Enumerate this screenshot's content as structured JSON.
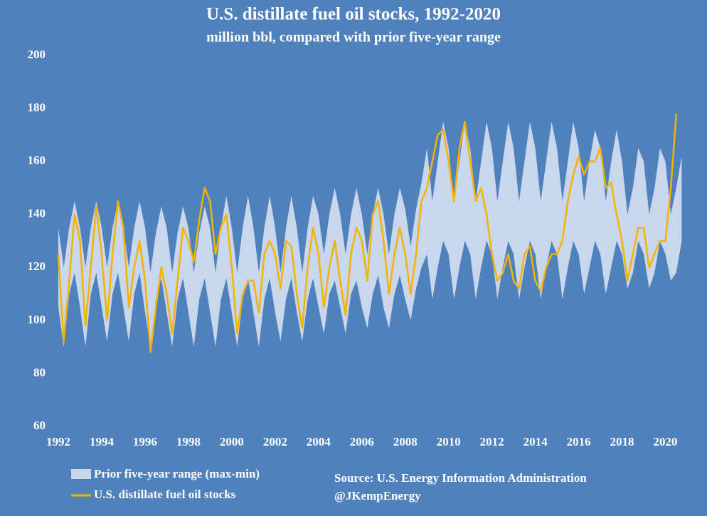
{
  "chart_data": {
    "type": "line",
    "title": "U.S. distillate fuel oil stocks, 1992-2020",
    "subtitle": "million bbl, compared with prior five-year range",
    "annotations": [
      "Source: U.S. Energy Information Administration",
      "@JKempEnergy"
    ],
    "xlim": [
      1992,
      2021
    ],
    "ylim": [
      60,
      200
    ],
    "xticks": [
      1992,
      1994,
      1996,
      1998,
      2000,
      2002,
      2004,
      2006,
      2008,
      2010,
      2012,
      2014,
      2016,
      2018,
      2020
    ],
    "yticks": [
      60,
      80,
      100,
      120,
      140,
      160,
      180,
      200
    ],
    "x": [
      1992,
      1992.25,
      1992.5,
      1992.75,
      1993,
      1993.25,
      1993.5,
      1993.75,
      1994,
      1994.25,
      1994.5,
      1994.75,
      1995,
      1995.25,
      1995.5,
      1995.75,
      1996,
      1996.25,
      1996.5,
      1996.75,
      1997,
      1997.25,
      1997.5,
      1997.75,
      1998,
      1998.25,
      1998.5,
      1998.75,
      1999,
      1999.25,
      1999.5,
      1999.75,
      2000,
      2000.25,
      2000.5,
      2000.75,
      2001,
      2001.25,
      2001.5,
      2001.75,
      2002,
      2002.25,
      2002.5,
      2002.75,
      2003,
      2003.25,
      2003.5,
      2003.75,
      2004,
      2004.25,
      2004.5,
      2004.75,
      2005,
      2005.25,
      2005.5,
      2005.75,
      2006,
      2006.25,
      2006.5,
      2006.75,
      2007,
      2007.25,
      2007.5,
      2007.75,
      2008,
      2008.25,
      2008.5,
      2008.75,
      2009,
      2009.25,
      2009.5,
      2009.75,
      2010,
      2010.25,
      2010.5,
      2010.75,
      2011,
      2011.25,
      2011.5,
      2011.75,
      2012,
      2012.25,
      2012.5,
      2012.75,
      2013,
      2013.25,
      2013.5,
      2013.75,
      2014,
      2014.25,
      2014.5,
      2014.75,
      2015,
      2015.25,
      2015.5,
      2015.75,
      2016,
      2016.25,
      2016.5,
      2016.75,
      2017,
      2017.25,
      2017.5,
      2017.75,
      2018,
      2018.25,
      2018.5,
      2018.75,
      2019,
      2019.25,
      2019.5,
      2019.75,
      2020,
      2020.25,
      2020.5,
      2020.75
    ],
    "band": {
      "name": "Prior five-year range (max-min)",
      "color": "#c9d7ec",
      "low": [
        105,
        90,
        110,
        118,
        105,
        90,
        110,
        118,
        105,
        92,
        110,
        118,
        105,
        92,
        110,
        118,
        103,
        90,
        108,
        116,
        103,
        90,
        108,
        116,
        103,
        90,
        108,
        116,
        103,
        90,
        108,
        116,
        103,
        90,
        108,
        116,
        103,
        90,
        108,
        116,
        103,
        92,
        108,
        116,
        103,
        92,
        108,
        116,
        105,
        95,
        110,
        115,
        105,
        95,
        110,
        115,
        105,
        97,
        110,
        117,
        105,
        97,
        110,
        117,
        108,
        100,
        112,
        120,
        125,
        108,
        120,
        130,
        125,
        108,
        120,
        130,
        125,
        108,
        120,
        130,
        125,
        108,
        120,
        130,
        125,
        108,
        120,
        130,
        125,
        108,
        120,
        130,
        125,
        108,
        120,
        130,
        125,
        110,
        120,
        130,
        125,
        110,
        120,
        130,
        125,
        112,
        118,
        130,
        125,
        112,
        118,
        130,
        125,
        115,
        118,
        130
      ],
      "high": [
        135,
        120,
        135,
        145,
        135,
        120,
        135,
        145,
        135,
        120,
        135,
        145,
        135,
        120,
        135,
        145,
        135,
        118,
        133,
        143,
        135,
        118,
        133,
        143,
        135,
        118,
        133,
        143,
        135,
        118,
        135,
        147,
        135,
        118,
        135,
        147,
        135,
        118,
        135,
        147,
        135,
        118,
        135,
        147,
        135,
        118,
        135,
        147,
        140,
        125,
        140,
        150,
        140,
        125,
        140,
        150,
        140,
        125,
        140,
        150,
        140,
        125,
        140,
        150,
        142,
        128,
        142,
        152,
        165,
        145,
        160,
        175,
        165,
        145,
        160,
        175,
        165,
        145,
        160,
        175,
        165,
        145,
        160,
        175,
        165,
        145,
        160,
        175,
        165,
        145,
        160,
        175,
        165,
        145,
        160,
        175,
        165,
        145,
        160,
        172,
        165,
        145,
        160,
        172,
        160,
        140,
        150,
        165,
        160,
        140,
        150,
        165,
        160,
        140,
        150,
        162
      ]
    },
    "series": [
      {
        "name": "U.S. distillate fuel oil stocks",
        "color": "#f5b300",
        "values": [
          125,
          92,
          115,
          140,
          130,
          98,
          120,
          143,
          125,
          100,
          125,
          145,
          135,
          105,
          120,
          130,
          115,
          88,
          105,
          120,
          110,
          95,
          115,
          135,
          130,
          122,
          138,
          150,
          145,
          125,
          135,
          140,
          120,
          95,
          110,
          115,
          115,
          103,
          125,
          130,
          125,
          112,
          130,
          128,
          110,
          97,
          120,
          135,
          125,
          105,
          120,
          130,
          115,
          102,
          125,
          135,
          130,
          115,
          140,
          145,
          130,
          110,
          125,
          135,
          125,
          110,
          125,
          145,
          150,
          160,
          170,
          172,
          160,
          145,
          165,
          175,
          160,
          145,
          150,
          140,
          125,
          115,
          118,
          125,
          115,
          112,
          125,
          128,
          115,
          111,
          120,
          125,
          125,
          130,
          145,
          155,
          162,
          155,
          160,
          160,
          165,
          150,
          152,
          140,
          130,
          115,
          125,
          135,
          135,
          120,
          125,
          130,
          130,
          150,
          178,
          null
        ]
      }
    ]
  }
}
